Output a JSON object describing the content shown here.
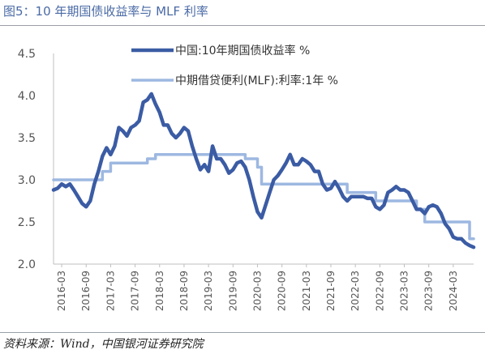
{
  "header": {
    "title": "图5：10 年期国债收益率与 MLF 利率"
  },
  "footer": {
    "source": "资料来源：Wind，中国银河证券研究院"
  },
  "chart_data": {
    "type": "line",
    "title": "",
    "xlabel": "",
    "ylabel": "",
    "ylim": [
      2.0,
      4.5
    ],
    "y_ticks": [
      "4.5",
      "4.0",
      "3.5",
      "3.0",
      "2.5",
      "2.0"
    ],
    "x_ticks": [
      "2016-03",
      "2016-09",
      "2017-03",
      "2017-09",
      "2018-03",
      "2018-09",
      "2019-03",
      "2019-09",
      "2020-03",
      "2020-09",
      "2021-03",
      "2021-09",
      "2022-03",
      "2022-09",
      "2023-03",
      "2023-09",
      "2024-03"
    ],
    "x_range": [
      "2016-01",
      "2024-08"
    ],
    "grid": false,
    "legend_position": "top",
    "series": [
      {
        "name": "中国:10年期国债收益率 %",
        "color": "#3b5ca4",
        "x": [
          "2016-01",
          "2016-02",
          "2016-03",
          "2016-04",
          "2016-05",
          "2016-06",
          "2016-07",
          "2016-08",
          "2016-09",
          "2016-10",
          "2016-11",
          "2016-12",
          "2017-01",
          "2017-02",
          "2017-03",
          "2017-04",
          "2017-05",
          "2017-06",
          "2017-07",
          "2017-08",
          "2017-09",
          "2017-10",
          "2017-11",
          "2017-12",
          "2018-01",
          "2018-02",
          "2018-03",
          "2018-04",
          "2018-05",
          "2018-06",
          "2018-07",
          "2018-08",
          "2018-09",
          "2018-10",
          "2018-11",
          "2018-12",
          "2019-01",
          "2019-02",
          "2019-03",
          "2019-04",
          "2019-05",
          "2019-06",
          "2019-07",
          "2019-08",
          "2019-09",
          "2019-10",
          "2019-11",
          "2019-12",
          "2020-01",
          "2020-02",
          "2020-03",
          "2020-04",
          "2020-05",
          "2020-06",
          "2020-07",
          "2020-08",
          "2020-09",
          "2020-10",
          "2020-11",
          "2020-12",
          "2021-01",
          "2021-02",
          "2021-03",
          "2021-04",
          "2021-05",
          "2021-06",
          "2021-07",
          "2021-08",
          "2021-09",
          "2021-10",
          "2021-11",
          "2021-12",
          "2022-01",
          "2022-02",
          "2022-03",
          "2022-04",
          "2022-05",
          "2022-06",
          "2022-07",
          "2022-08",
          "2022-09",
          "2022-10",
          "2022-11",
          "2022-12",
          "2023-01",
          "2023-02",
          "2023-03",
          "2023-04",
          "2023-05",
          "2023-06",
          "2023-07",
          "2023-08",
          "2023-09",
          "2023-10",
          "2023-11",
          "2023-12",
          "2024-01",
          "2024-02",
          "2024-03",
          "2024-04",
          "2024-05",
          "2024-06",
          "2024-07",
          "2024-08"
        ],
        "values": [
          2.88,
          2.9,
          2.95,
          2.92,
          2.95,
          2.88,
          2.8,
          2.72,
          2.68,
          2.75,
          2.95,
          3.1,
          3.28,
          3.38,
          3.3,
          3.4,
          3.62,
          3.58,
          3.52,
          3.62,
          3.65,
          3.7,
          3.92,
          3.95,
          4.02,
          3.9,
          3.8,
          3.65,
          3.65,
          3.55,
          3.5,
          3.55,
          3.62,
          3.58,
          3.4,
          3.25,
          3.12,
          3.18,
          3.1,
          3.4,
          3.25,
          3.25,
          3.18,
          3.08,
          3.12,
          3.2,
          3.22,
          3.15,
          3.0,
          2.8,
          2.62,
          2.55,
          2.7,
          2.85,
          3.0,
          3.05,
          3.12,
          3.2,
          3.3,
          3.18,
          3.18,
          3.25,
          3.22,
          3.18,
          3.1,
          3.1,
          2.95,
          2.88,
          2.9,
          2.98,
          2.9,
          2.8,
          2.75,
          2.8,
          2.8,
          2.8,
          2.8,
          2.78,
          2.78,
          2.68,
          2.65,
          2.7,
          2.85,
          2.88,
          2.92,
          2.88,
          2.88,
          2.85,
          2.75,
          2.65,
          2.65,
          2.6,
          2.68,
          2.7,
          2.68,
          2.6,
          2.48,
          2.42,
          2.32,
          2.3,
          2.3,
          2.25,
          2.22,
          2.2
        ]
      },
      {
        "name": "中期借贷便利(MLF):利率:1年 %",
        "color": "#9db8e1",
        "x": [
          "2016-01",
          "2017-01",
          "2017-01",
          "2017-03",
          "2017-03",
          "2017-12",
          "2017-12",
          "2018-02",
          "2018-02",
          "2019-12",
          "2019-12",
          "2020-03",
          "2020-03",
          "2020-04",
          "2020-04",
          "2022-01",
          "2022-01",
          "2022-08",
          "2022-08",
          "2023-06",
          "2023-06",
          "2023-08",
          "2023-08",
          "2024-07",
          "2024-07",
          "2024-08"
        ],
        "values": [
          3.0,
          3.0,
          3.1,
          3.1,
          3.2,
          3.2,
          3.25,
          3.25,
          3.3,
          3.3,
          3.25,
          3.25,
          3.15,
          3.15,
          2.95,
          2.95,
          2.85,
          2.85,
          2.75,
          2.75,
          2.65,
          2.65,
          2.5,
          2.5,
          2.3,
          2.3
        ]
      }
    ]
  }
}
